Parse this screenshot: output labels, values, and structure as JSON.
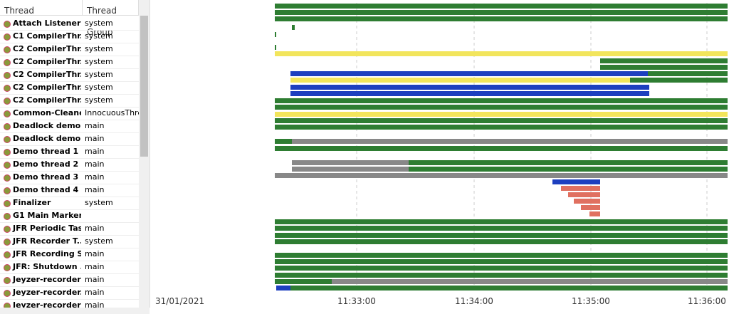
{
  "table": {
    "headers": [
      "Thread",
      "Thread Group"
    ],
    "rows": [
      [
        "Attach Listener",
        "system"
      ],
      [
        "C1 CompilerThr...",
        "system"
      ],
      [
        "C2 CompilerThr...",
        "system"
      ],
      [
        "C2 CompilerThr...",
        "system"
      ],
      [
        "C2 CompilerThr...",
        "system"
      ],
      [
        "C2 CompilerThr...",
        "system"
      ],
      [
        "C2 CompilerThr...",
        "system"
      ],
      [
        "Common-Cleaner",
        "InnocuousThrea"
      ],
      [
        "Deadlock demo ...",
        "main"
      ],
      [
        "Deadlock demo ...",
        "main"
      ],
      [
        "Demo thread 1",
        "main"
      ],
      [
        "Demo thread 2",
        "main"
      ],
      [
        "Demo thread 3",
        "main"
      ],
      [
        "Demo thread 4",
        "main"
      ],
      [
        "Finalizer",
        "system"
      ],
      [
        "G1 Main Marker"
      ],
      [
        "JFR Periodic Tas...",
        "main"
      ],
      [
        "JFR Recorder T...",
        "system"
      ],
      [
        "JFR Recording S...",
        "main"
      ],
      [
        "JFR: Shutdown ...",
        "main"
      ],
      [
        "Jeyzer-recorder",
        "main"
      ],
      [
        "Jeyzer-recorder...",
        "main"
      ],
      [
        "Jeyzer-recorder",
        "main"
      ]
    ]
  },
  "timeline": {
    "date": "31/01/2021",
    "ticks": [
      "11:33:00",
      "11:34:00",
      "11:35:00",
      "11:36:00"
    ]
  }
}
